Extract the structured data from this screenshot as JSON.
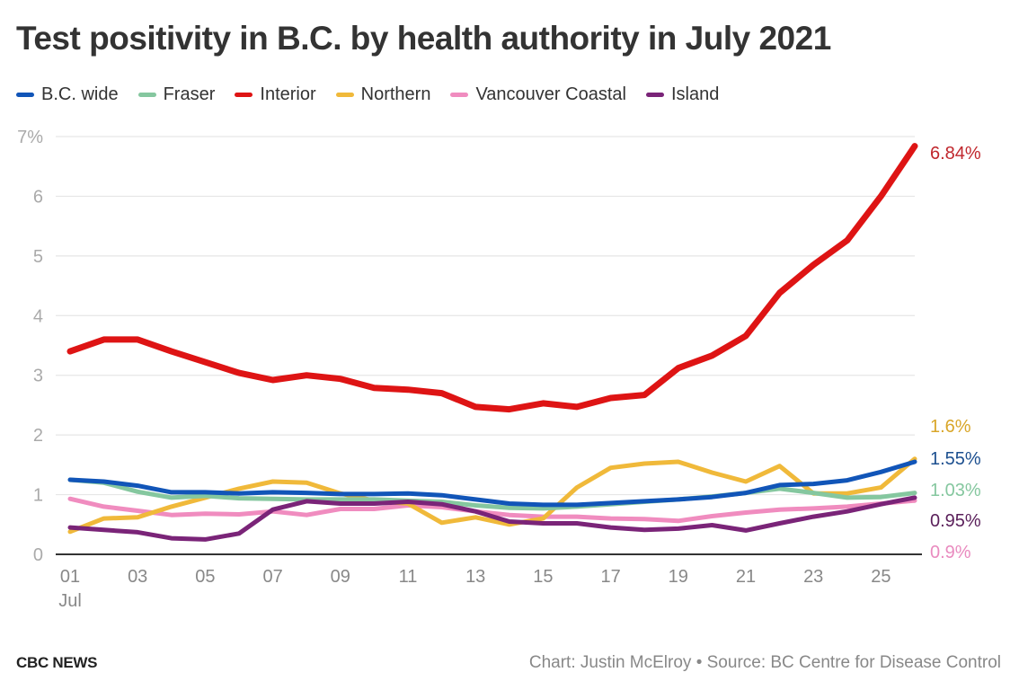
{
  "title": "Test positivity in B.C. by health authority in July 2021",
  "footer": {
    "brand": "CBC NEWS",
    "source": "Chart: Justin McElroy • Source: BC Centre for Disease Control"
  },
  "chart_data": {
    "type": "line",
    "title": "Test positivity in B.C. by health authority in July 2021",
    "xlabel": "",
    "ylabel": "",
    "x": [
      1,
      2,
      3,
      4,
      5,
      6,
      7,
      8,
      9,
      10,
      11,
      12,
      13,
      14,
      15,
      16,
      17,
      18,
      19,
      20,
      21,
      22,
      23,
      24,
      25,
      26
    ],
    "x_tick_labels": [
      "01",
      "03",
      "05",
      "07",
      "09",
      "11",
      "13",
      "15",
      "17",
      "19",
      "21",
      "23",
      "25"
    ],
    "x_tick_values": [
      1,
      3,
      5,
      7,
      9,
      11,
      13,
      15,
      17,
      19,
      21,
      23,
      25
    ],
    "x_sublabel": "Jul",
    "y_tick_labels": [
      "0",
      "1",
      "2",
      "3",
      "4",
      "5",
      "6",
      "7%"
    ],
    "y_tick_values": [
      0,
      1,
      2,
      3,
      4,
      5,
      6,
      7
    ],
    "ylim": [
      0,
      7
    ],
    "xlim": [
      1,
      26
    ],
    "grid": true,
    "legend_position": "top-left",
    "series": [
      {
        "name": "B.C. wide",
        "color": "#1155b8",
        "end_label": "1.55%",
        "values": [
          1.25,
          1.22,
          1.15,
          1.04,
          1.04,
          1.02,
          1.04,
          1.03,
          1.01,
          1.01,
          1.02,
          0.99,
          0.92,
          0.85,
          0.83,
          0.83,
          0.86,
          0.89,
          0.92,
          0.96,
          1.03,
          1.16,
          1.18,
          1.24,
          1.38,
          1.55
        ]
      },
      {
        "name": "Fraser",
        "color": "#85c79f",
        "end_label": "1.03%",
        "values": [
          1.25,
          1.2,
          1.05,
          0.95,
          0.98,
          0.94,
          0.93,
          0.92,
          0.92,
          0.92,
          0.9,
          0.88,
          0.82,
          0.78,
          0.77,
          0.8,
          0.84,
          0.88,
          0.92,
          0.97,
          1.03,
          1.1,
          1.03,
          0.95,
          0.96,
          1.03
        ]
      },
      {
        "name": "Interior",
        "color": "#de1414",
        "end_label": "6.84%",
        "values": [
          3.4,
          3.6,
          3.6,
          3.4,
          3.22,
          3.04,
          2.92,
          3.0,
          2.94,
          2.79,
          2.76,
          2.7,
          2.47,
          2.43,
          2.53,
          2.47,
          2.62,
          2.67,
          3.12,
          3.33,
          3.66,
          4.38,
          4.85,
          5.26,
          6.0,
          6.84
        ]
      },
      {
        "name": "Northern",
        "color": "#f0b93a",
        "end_label": "1.6%",
        "values": [
          0.38,
          0.6,
          0.62,
          0.8,
          0.95,
          1.1,
          1.22,
          1.2,
          1.02,
          0.9,
          0.85,
          0.53,
          0.62,
          0.5,
          0.6,
          1.12,
          1.45,
          1.52,
          1.55,
          1.37,
          1.22,
          1.48,
          1.02,
          1.02,
          1.12,
          1.6
        ]
      },
      {
        "name": "Vancouver Coastal",
        "color": "#f08cbf",
        "end_label": "0.9%",
        "values": [
          0.93,
          0.8,
          0.73,
          0.66,
          0.68,
          0.67,
          0.72,
          0.66,
          0.76,
          0.76,
          0.82,
          0.79,
          0.72,
          0.66,
          0.63,
          0.63,
          0.6,
          0.59,
          0.56,
          0.64,
          0.7,
          0.75,
          0.77,
          0.8,
          0.85,
          0.9
        ]
      },
      {
        "name": "Island",
        "color": "#7a2478",
        "end_label": "0.95%",
        "values": [
          0.45,
          0.41,
          0.37,
          0.27,
          0.25,
          0.35,
          0.75,
          0.89,
          0.85,
          0.85,
          0.88,
          0.84,
          0.72,
          0.55,
          0.52,
          0.52,
          0.45,
          0.41,
          0.43,
          0.49,
          0.4,
          0.52,
          0.63,
          0.72,
          0.84,
          0.95
        ]
      }
    ],
    "end_label_colors": {
      "Interior": "#c0272d",
      "Northern": "#d9a629",
      "B.C. wide": "#1c4f8f",
      "Fraser": "#85c79f",
      "Island": "#5a1f5a",
      "Vancouver Coastal": "#e98bbf"
    },
    "end_label_order": [
      "Interior",
      "Northern",
      "B.C. wide",
      "Fraser",
      "Island",
      "Vancouver Coastal"
    ],
    "axis_color": "#333333",
    "grid_color": "#e6e6e6",
    "tick_label_color": "#aaaaaa",
    "x_tick_label_color": "#888888"
  }
}
